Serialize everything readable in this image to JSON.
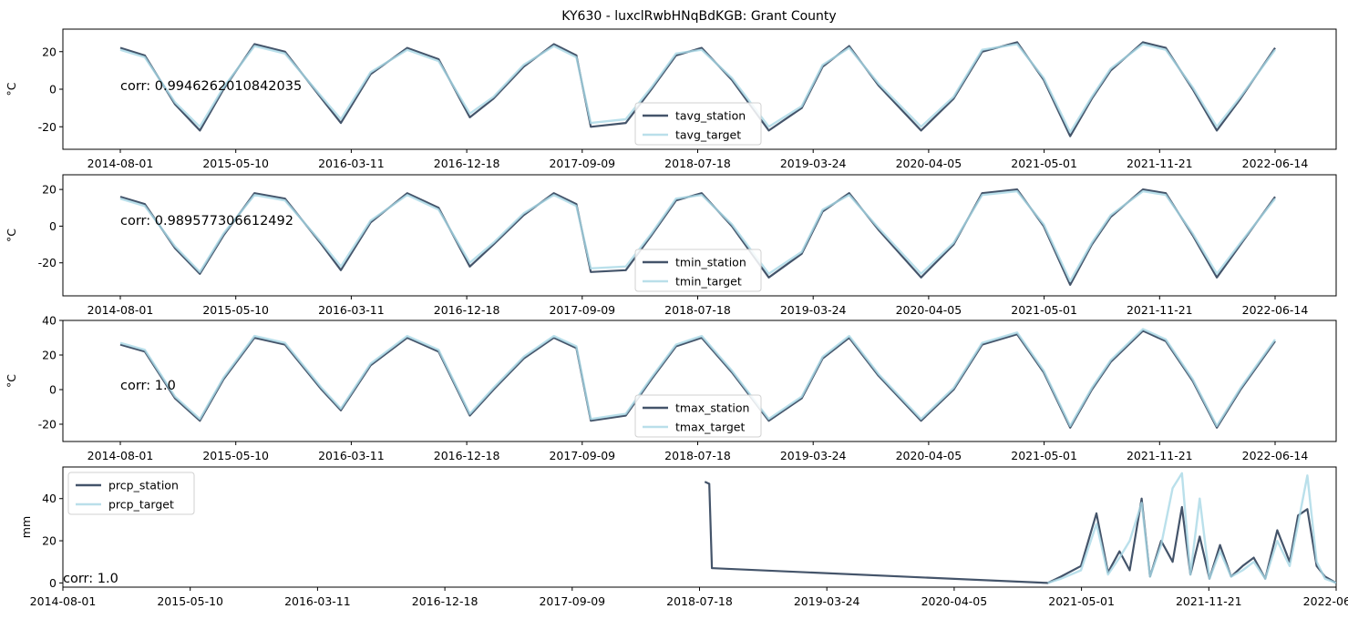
{
  "title": "KY630 - luxclRwbHNqBdKGB: Grant County",
  "colors": {
    "station": "#44546a",
    "target": "#a9d8e6"
  },
  "chart_data": [
    {
      "type": "line",
      "ylabel": "°C",
      "ylim": [
        -32,
        32
      ],
      "yticks": [
        -20,
        0,
        20
      ],
      "xticks": [
        "2014-08-01",
        "2015-05-10",
        "2016-03-11",
        "2016-12-18",
        "2017-09-09",
        "2018-07-18",
        "2019-03-24",
        "2020-04-05",
        "2021-05-01",
        "2021-11-21",
        "2022-06-14"
      ],
      "corr_label": "corr: 0.9946262010842035",
      "legend_position": "lower center",
      "series": [
        {
          "name": "tavg_station",
          "x": [
            "2014-08-01",
            "2014-10-01",
            "2014-12-15",
            "2015-02-15",
            "2015-04-15",
            "2015-07-01",
            "2015-09-15",
            "2015-12-15",
            "2016-02-01",
            "2016-04-15",
            "2016-07-15",
            "2016-10-01",
            "2016-12-18",
            "2017-02-15",
            "2017-05-01",
            "2017-07-15",
            "2017-09-09",
            "2017-10-15",
            "2018-01-10",
            "2018-03-15",
            "2018-05-15",
            "2018-07-18",
            "2018-10-01",
            "2019-01-01",
            "2019-03-24",
            "2019-05-15",
            "2019-07-20",
            "2019-10-01",
            "2020-01-15",
            "2020-04-05",
            "2020-06-15",
            "2020-09-10",
            "2020-11-15",
            "2021-01-20",
            "2021-03-15",
            "2021-05-01",
            "2021-07-20",
            "2021-09-15",
            "2021-11-21",
            "2022-01-20",
            "2022-03-20",
            "2022-06-14"
          ],
          "values": [
            22,
            18,
            -8,
            -22,
            0,
            24,
            20,
            -5,
            -18,
            8,
            22,
            16,
            -15,
            -5,
            12,
            24,
            18,
            -20,
            -18,
            0,
            18,
            22,
            5,
            -22,
            -10,
            12,
            23,
            2,
            -22,
            -5,
            20,
            25,
            5,
            -25,
            -5,
            10,
            25,
            22,
            0,
            -22,
            -5,
            22
          ]
        },
        {
          "name": "tavg_target",
          "x": [
            "2014-08-01",
            "2014-10-01",
            "2014-12-15",
            "2015-02-15",
            "2015-04-15",
            "2015-07-01",
            "2015-09-15",
            "2015-12-15",
            "2016-02-01",
            "2016-04-15",
            "2016-07-15",
            "2016-10-01",
            "2016-12-18",
            "2017-02-15",
            "2017-05-01",
            "2017-07-15",
            "2017-09-09",
            "2017-10-15",
            "2018-01-10",
            "2018-03-15",
            "2018-05-15",
            "2018-07-18",
            "2018-10-01",
            "2019-01-01",
            "2019-03-24",
            "2019-05-15",
            "2019-07-20",
            "2019-10-01",
            "2020-01-15",
            "2020-04-05",
            "2020-06-15",
            "2020-09-10",
            "2020-11-15",
            "2021-01-20",
            "2021-03-15",
            "2021-05-01",
            "2021-07-20",
            "2021-09-15",
            "2021-11-21",
            "2022-01-20",
            "2022-03-20",
            "2022-06-14"
          ],
          "values": [
            21,
            17,
            -7,
            -20,
            1,
            23,
            19,
            -4,
            -16,
            9,
            21,
            15,
            -13,
            -4,
            13,
            23,
            17,
            -18,
            -16,
            1,
            19,
            21,
            6,
            -20,
            -9,
            13,
            22,
            3,
            -20,
            -4,
            21,
            24,
            6,
            -23,
            -4,
            11,
            24,
            21,
            1,
            -20,
            -4,
            21
          ]
        }
      ]
    },
    {
      "type": "line",
      "ylabel": "°C",
      "ylim": [
        -38,
        28
      ],
      "yticks": [
        -20,
        0,
        20
      ],
      "xticks": [
        "2014-08-01",
        "2015-05-10",
        "2016-03-11",
        "2016-12-18",
        "2017-09-09",
        "2018-07-18",
        "2019-03-24",
        "2020-04-05",
        "2021-05-01",
        "2021-11-21",
        "2022-06-14"
      ],
      "corr_label": "corr: 0.989577306612492",
      "legend_position": "lower center",
      "series": [
        {
          "name": "tmin_station",
          "x": [
            "2014-08-01",
            "2014-10-01",
            "2014-12-15",
            "2015-02-15",
            "2015-04-15",
            "2015-07-01",
            "2015-09-15",
            "2015-12-15",
            "2016-02-01",
            "2016-04-15",
            "2016-07-15",
            "2016-10-01",
            "2016-12-18",
            "2017-02-15",
            "2017-05-01",
            "2017-07-15",
            "2017-09-09",
            "2017-10-15",
            "2018-01-10",
            "2018-03-15",
            "2018-05-15",
            "2018-07-18",
            "2018-10-01",
            "2019-01-01",
            "2019-03-24",
            "2019-05-15",
            "2019-07-20",
            "2019-10-01",
            "2020-01-15",
            "2020-04-05",
            "2020-06-15",
            "2020-09-10",
            "2020-11-15",
            "2021-01-20",
            "2021-03-15",
            "2021-05-01",
            "2021-07-20",
            "2021-09-15",
            "2021-11-21",
            "2022-01-20",
            "2022-03-20",
            "2022-06-14"
          ],
          "values": [
            16,
            12,
            -12,
            -26,
            -5,
            18,
            15,
            -10,
            -24,
            2,
            18,
            10,
            -22,
            -10,
            6,
            18,
            12,
            -25,
            -24,
            -5,
            14,
            18,
            0,
            -28,
            -15,
            8,
            18,
            -2,
            -28,
            -10,
            18,
            20,
            0,
            -32,
            -10,
            5,
            20,
            18,
            -5,
            -28,
            -10,
            16
          ]
        },
        {
          "name": "tmin_target",
          "x": [
            "2014-08-01",
            "2014-10-01",
            "2014-12-15",
            "2015-02-15",
            "2015-04-15",
            "2015-07-01",
            "2015-09-15",
            "2015-12-15",
            "2016-02-01",
            "2016-04-15",
            "2016-07-15",
            "2016-10-01",
            "2016-12-18",
            "2017-02-15",
            "2017-05-01",
            "2017-07-15",
            "2017-09-09",
            "2017-10-15",
            "2018-01-10",
            "2018-03-15",
            "2018-05-15",
            "2018-07-18",
            "2018-10-01",
            "2019-01-01",
            "2019-03-24",
            "2019-05-15",
            "2019-07-20",
            "2019-10-01",
            "2020-01-15",
            "2020-04-05",
            "2020-06-15",
            "2020-09-10",
            "2020-11-15",
            "2021-01-20",
            "2021-03-15",
            "2021-05-01",
            "2021-07-20",
            "2021-09-15",
            "2021-11-21",
            "2022-01-20",
            "2022-03-20",
            "2022-06-14"
          ],
          "values": [
            15,
            11,
            -11,
            -25,
            -4,
            17,
            14,
            -9,
            -22,
            3,
            17,
            9,
            -20,
            -9,
            7,
            17,
            11,
            -23,
            -22,
            -4,
            15,
            17,
            1,
            -26,
            -14,
            9,
            17,
            -1,
            -26,
            -9,
            17,
            19,
            1,
            -30,
            -9,
            6,
            19,
            17,
            -4,
            -26,
            -9,
            15
          ]
        }
      ]
    },
    {
      "type": "line",
      "ylabel": "°C",
      "ylim": [
        -30,
        40
      ],
      "yticks": [
        -20,
        0,
        20,
        40
      ],
      "xticks": [
        "2014-08-01",
        "2015-05-10",
        "2016-03-11",
        "2016-12-18",
        "2017-09-09",
        "2018-07-18",
        "2019-03-24",
        "2020-04-05",
        "2021-05-01",
        "2021-11-21",
        "2022-06-14"
      ],
      "corr_label": "corr: 1.0",
      "legend_position": "lower center",
      "series": [
        {
          "name": "tmax_station",
          "x": [
            "2014-08-01",
            "2014-10-01",
            "2014-12-15",
            "2015-02-15",
            "2015-04-15",
            "2015-07-01",
            "2015-09-15",
            "2015-12-15",
            "2016-02-01",
            "2016-04-15",
            "2016-07-15",
            "2016-10-01",
            "2016-12-18",
            "2017-02-15",
            "2017-05-01",
            "2017-07-15",
            "2017-09-09",
            "2017-10-15",
            "2018-01-10",
            "2018-03-15",
            "2018-05-15",
            "2018-07-18",
            "2018-10-01",
            "2019-01-01",
            "2019-03-24",
            "2019-05-15",
            "2019-07-20",
            "2019-10-01",
            "2020-01-15",
            "2020-04-05",
            "2020-06-15",
            "2020-09-10",
            "2020-11-15",
            "2021-01-20",
            "2021-03-15",
            "2021-05-01",
            "2021-07-20",
            "2021-09-15",
            "2021-11-21",
            "2022-01-20",
            "2022-03-20",
            "2022-06-14"
          ],
          "values": [
            26,
            22,
            -5,
            -18,
            6,
            30,
            26,
            0,
            -12,
            14,
            30,
            22,
            -15,
            0,
            18,
            30,
            24,
            -18,
            -15,
            6,
            25,
            30,
            10,
            -18,
            -5,
            18,
            30,
            8,
            -18,
            0,
            26,
            32,
            10,
            -22,
            0,
            16,
            34,
            28,
            5,
            -22,
            0,
            28
          ]
        },
        {
          "name": "tmax_target",
          "x": [
            "2014-08-01",
            "2014-10-01",
            "2014-12-15",
            "2015-02-15",
            "2015-04-15",
            "2015-07-01",
            "2015-09-15",
            "2015-12-15",
            "2016-02-01",
            "2016-04-15",
            "2016-07-15",
            "2016-10-01",
            "2016-12-18",
            "2017-02-15",
            "2017-05-01",
            "2017-07-15",
            "2017-09-09",
            "2017-10-15",
            "2018-01-10",
            "2018-03-15",
            "2018-05-15",
            "2018-07-18",
            "2018-10-01",
            "2019-01-01",
            "2019-03-24",
            "2019-05-15",
            "2019-07-20",
            "2019-10-01",
            "2020-01-15",
            "2020-04-05",
            "2020-06-15",
            "2020-09-10",
            "2020-11-15",
            "2021-01-20",
            "2021-03-15",
            "2021-05-01",
            "2021-07-20",
            "2021-09-15",
            "2021-11-21",
            "2022-01-20",
            "2022-03-20",
            "2022-06-14"
          ],
          "values": [
            27,
            23,
            -4,
            -17,
            7,
            31,
            27,
            1,
            -11,
            15,
            31,
            23,
            -14,
            1,
            19,
            31,
            25,
            -17,
            -14,
            7,
            26,
            31,
            11,
            -17,
            -4,
            19,
            31,
            9,
            -17,
            1,
            27,
            33,
            11,
            -21,
            1,
            17,
            35,
            29,
            6,
            -21,
            1,
            29
          ]
        }
      ]
    },
    {
      "type": "line",
      "ylabel": "mm",
      "ylim": [
        -2,
        55
      ],
      "yticks": [
        0,
        20,
        40
      ],
      "xticks": [
        "2014-08-01",
        "2015-05-10",
        "2016-03-11",
        "2016-12-18",
        "2017-09-09",
        "2018-07-18",
        "2019-03-24",
        "2020-04-05",
        "2021-05-01",
        "2021-11-21",
        "2022-06-14"
      ],
      "corr_label": "corr: 1.0",
      "legend_position": "upper left",
      "series": [
        {
          "name": "prcp_station",
          "x": [
            "2018-07-20",
            "2018-07-30",
            "2018-08-05",
            "2018-08-08",
            "2020-09-01",
            "2020-10-01",
            "2020-11-15",
            "2020-12-20",
            "2021-01-15",
            "2021-02-10",
            "2021-03-05",
            "2021-04-01",
            "2021-04-20",
            "2021-05-15",
            "2021-06-10",
            "2021-07-01",
            "2021-07-20",
            "2021-08-10",
            "2021-09-01",
            "2021-09-25",
            "2021-10-20",
            "2021-11-15",
            "2021-12-10",
            "2022-01-05",
            "2022-02-01",
            "2022-03-01",
            "2022-03-20",
            "2022-04-10",
            "2022-05-01",
            "2022-05-20",
            "2022-06-14"
          ],
          "values": [
            48,
            47,
            7,
            7,
            0,
            3,
            8,
            33,
            5,
            15,
            6,
            40,
            3,
            20,
            10,
            36,
            4,
            22,
            2,
            18,
            3,
            8,
            12,
            2,
            25,
            10,
            32,
            35,
            8,
            3,
            0
          ]
        },
        {
          "name": "prcp_target",
          "x": [
            "2020-09-01",
            "2020-10-01",
            "2020-11-15",
            "2020-12-20",
            "2021-01-15",
            "2021-02-10",
            "2021-03-05",
            "2021-04-01",
            "2021-04-20",
            "2021-05-15",
            "2021-06-10",
            "2021-07-01",
            "2021-07-20",
            "2021-08-10",
            "2021-09-01",
            "2021-09-25",
            "2021-10-20",
            "2021-11-15",
            "2021-12-10",
            "2022-01-05",
            "2022-02-01",
            "2022-03-01",
            "2022-03-20",
            "2022-04-10",
            "2022-05-01",
            "2022-05-20",
            "2022-06-14"
          ],
          "values": [
            0,
            2,
            6,
            28,
            4,
            12,
            20,
            38,
            3,
            18,
            45,
            52,
            4,
            40,
            2,
            15,
            3,
            6,
            10,
            2,
            20,
            8,
            28,
            51,
            10,
            2,
            0
          ]
        }
      ]
    }
  ]
}
